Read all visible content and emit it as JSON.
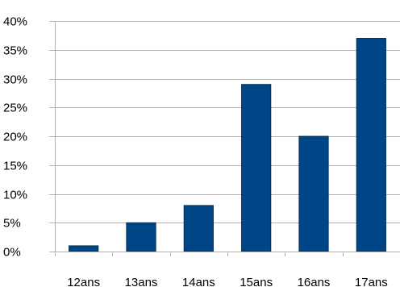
{
  "chart_data": {
    "type": "bar",
    "categories": [
      "12ans",
      "13ans",
      "14ans",
      "15ans",
      "16ans",
      "17ans"
    ],
    "values": [
      1,
      5,
      8,
      29,
      20,
      37
    ],
    "y_unit": "%",
    "ylim": [
      0,
      40
    ],
    "ytick_step": 5,
    "yticks": [
      "0%",
      "5%",
      "10%",
      "15%",
      "20%",
      "25%",
      "30%",
      "35%",
      "40%"
    ],
    "grid": true,
    "legend": "none",
    "colors": {
      "bar": "#004586",
      "grid": "#b3b3b3",
      "axis": "#b3b3b3"
    }
  }
}
